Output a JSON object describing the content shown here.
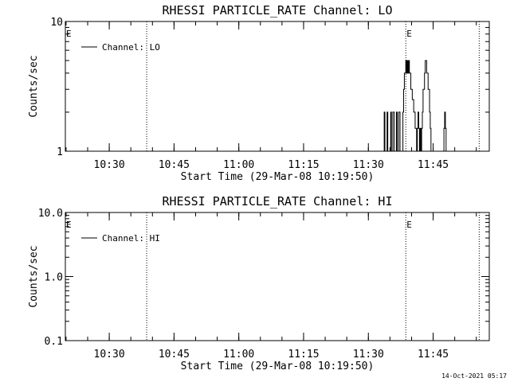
{
  "stamp": "14-Oct-2021 05:17",
  "chart_data": [
    {
      "type": "line",
      "title": "RHESSI PARTICLE_RATE Channel: LO",
      "ylabel": "Counts/sec",
      "xlabel": "Start Time (29-Mar-08 10:19:50)",
      "yscale": "log",
      "ylim": [
        1,
        10
      ],
      "yticks": [
        1,
        10
      ],
      "ytick_labels": [
        "1",
        "10"
      ],
      "xlim": [
        "10:19:50",
        "11:58:00"
      ],
      "xticks": [
        "10:30",
        "10:45",
        "11:00",
        "11:15",
        "11:30",
        "11:45"
      ],
      "legend": "top-left",
      "series": [
        {
          "name": "Channel: LO",
          "x": [
            "11:33:20",
            "11:33:40",
            "11:33:50",
            "11:34:10",
            "11:34:20",
            "11:34:30",
            "11:34:50",
            "11:35:10",
            "11:35:20",
            "11:35:30",
            "11:35:40",
            "11:36:00",
            "11:36:20",
            "11:36:30",
            "11:36:40",
            "11:36:50",
            "11:37:00",
            "11:37:20",
            "11:37:30",
            "11:37:50",
            "11:38:00",
            "11:38:10",
            "11:38:20",
            "11:38:40",
            "11:38:50",
            "11:39:00",
            "11:39:10",
            "11:39:20",
            "11:39:30",
            "11:39:40",
            "11:39:50",
            "11:40:00",
            "11:40:10",
            "11:40:20",
            "11:40:30",
            "11:40:40",
            "11:40:50",
            "11:41:00",
            "11:41:10",
            "11:41:20",
            "11:41:30",
            "11:41:40",
            "11:41:50",
            "11:42:00",
            "11:42:10",
            "11:42:20",
            "11:42:30",
            "11:42:40",
            "11:42:50",
            "11:43:00",
            "11:43:10",
            "11:43:20",
            "11:43:30",
            "11:43:40",
            "11:43:50",
            "11:44:00",
            "11:44:10",
            "11:44:20",
            "11:44:30",
            "11:44:40",
            "11:44:50",
            "11:45:00",
            "11:45:10",
            "11:45:20",
            "11:45:30",
            "11:45:40",
            "11:45:50",
            "11:46:00",
            "11:46:10",
            "11:46:20",
            "11:46:30",
            "11:47:10",
            "11:47:20",
            "11:47:30",
            "11:47:40",
            "11:47:50",
            "11:48:00",
            "11:48:10"
          ],
          "y": [
            1,
            2,
            1,
            1,
            2,
            1,
            1,
            2,
            1,
            1,
            2,
            1,
            1,
            2,
            1,
            1,
            2,
            1,
            1,
            1,
            2,
            3,
            4,
            5,
            4,
            5,
            4,
            5,
            4,
            4,
            3,
            3,
            2.5,
            2.5,
            2,
            2,
            1.5,
            1.5,
            1,
            1.5,
            2,
            1.5,
            1,
            1.5,
            1,
            1.5,
            2,
            3,
            3,
            4,
            5,
            5,
            4,
            4,
            3,
            3,
            2,
            1.5,
            1,
            1,
            1,
            1,
            1,
            1,
            1,
            1,
            1,
            1,
            1,
            1,
            1,
            1,
            1,
            1.5,
            2,
            1.5,
            1,
            1
          ]
        }
      ],
      "annotations": [
        {
          "label": "E",
          "x": "10:19:50",
          "style": "marker"
        },
        {
          "label": "",
          "x": "10:38:40",
          "style": "dotted-vline"
        },
        {
          "label": "E",
          "x": "11:38:40",
          "style": "marker+dotted-vline"
        },
        {
          "label": "",
          "x": "11:55:40",
          "style": "dotted-vline"
        }
      ]
    },
    {
      "type": "line",
      "title": "RHESSI PARTICLE_RATE Channel: HI",
      "ylabel": "Counts/sec",
      "xlabel": "Start Time (29-Mar-08 10:19:50)",
      "yscale": "log",
      "ylim": [
        0.1,
        10
      ],
      "yticks": [
        0.1,
        1,
        10
      ],
      "ytick_labels": [
        "0.1",
        "1.0",
        "10.0"
      ],
      "xlim": [
        "10:19:50",
        "11:58:00"
      ],
      "xticks": [
        "10:30",
        "10:45",
        "11:00",
        "11:15",
        "11:30",
        "11:45"
      ],
      "legend": "top-left",
      "series": [
        {
          "name": "Channel: HI",
          "x": [],
          "y": []
        }
      ],
      "annotations": [
        {
          "label": "E",
          "x": "10:19:50",
          "style": "marker"
        },
        {
          "label": "",
          "x": "10:38:40",
          "style": "dotted-vline"
        },
        {
          "label": "E",
          "x": "11:38:40",
          "style": "marker+dotted-vline"
        },
        {
          "label": "",
          "x": "11:55:40",
          "style": "dotted-vline"
        }
      ]
    }
  ]
}
